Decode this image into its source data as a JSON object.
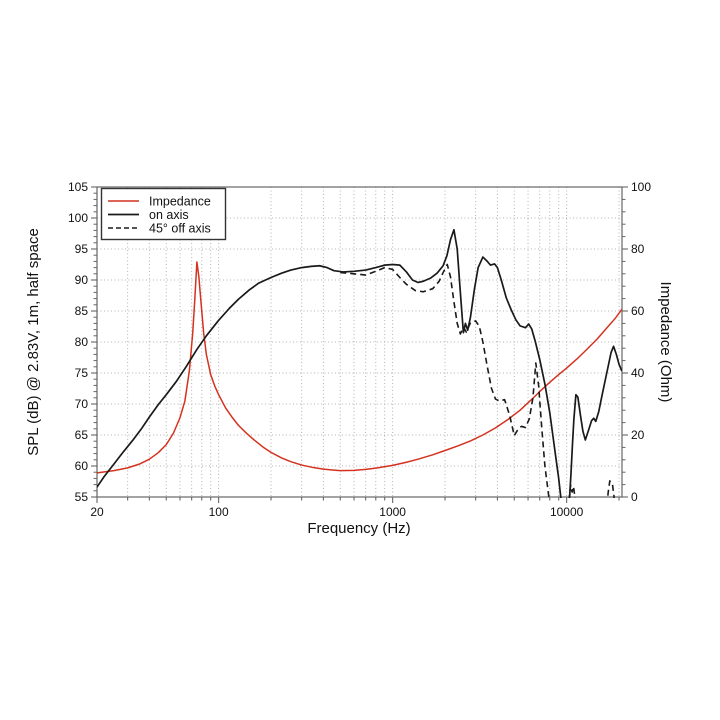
{
  "page": {
    "background": "#ffffff"
  },
  "chart_data": {
    "type": "line",
    "title": "",
    "x_axis": {
      "label": "Frequency (Hz)",
      "scale": "log",
      "min": 20,
      "max": 20800,
      "major_ticks": [
        20,
        100,
        1000,
        10000
      ],
      "tick_labels": [
        "20",
        "100",
        "1000",
        "10000"
      ]
    },
    "y_left_axis": {
      "label": "SPL (dB) @ 2.83V, 1m, half space",
      "min": 55,
      "max": 105,
      "major_step": 5,
      "minor_step": 1,
      "major_ticks": [
        55,
        60,
        65,
        70,
        75,
        80,
        85,
        90,
        95,
        100,
        105
      ],
      "tick_labels": [
        "55",
        "60",
        "65",
        "70",
        "75",
        "80",
        "85",
        "90",
        "95",
        "100",
        "105"
      ]
    },
    "y_right_axis": {
      "label": "Impedance (Ohm)",
      "min": 0,
      "max": 100,
      "major_step": 20,
      "minor_step": 4,
      "major_ticks": [
        0,
        20,
        40,
        60,
        80,
        100
      ],
      "tick_labels": [
        "0",
        "20",
        "40",
        "60",
        "80",
        "100"
      ]
    },
    "grid": {
      "show": true,
      "color": "#b3b3b3",
      "style": "dotted"
    },
    "frame_color": "#666666",
    "legend": {
      "position": "top-left",
      "entries": [
        {
          "label": "Impedance",
          "color": "#d4321f",
          "dash": "solid"
        },
        {
          "label": "on axis",
          "color": "#1a1a1a",
          "dash": "solid"
        },
        {
          "label": "45° off axis",
          "color": "#1a1a1a",
          "dash": "dashed"
        }
      ]
    },
    "series": [
      {
        "name": "Impedance",
        "axis": "right",
        "unit": "Ohm",
        "color": "#d4321f",
        "style": "solid",
        "points": [
          [
            20,
            7.8
          ],
          [
            25,
            8.5
          ],
          [
            30,
            9.4
          ],
          [
            35,
            10.6
          ],
          [
            40,
            12.2
          ],
          [
            45,
            14.3
          ],
          [
            50,
            16.9
          ],
          [
            55,
            20.6
          ],
          [
            60,
            25.6
          ],
          [
            64,
            31.0
          ],
          [
            68,
            41.0
          ],
          [
            71,
            53.0
          ],
          [
            73,
            64.0
          ],
          [
            75,
            75.8
          ],
          [
            77,
            71.0
          ],
          [
            79,
            63.5
          ],
          [
            82,
            53.0
          ],
          [
            85,
            46.0
          ],
          [
            90,
            39.5
          ],
          [
            95,
            35.8
          ],
          [
            100,
            33.0
          ],
          [
            110,
            28.6
          ],
          [
            120,
            25.6
          ],
          [
            130,
            23.1
          ],
          [
            145,
            20.5
          ],
          [
            160,
            18.4
          ],
          [
            180,
            16.1
          ],
          [
            200,
            14.4
          ],
          [
            230,
            12.6
          ],
          [
            260,
            11.4
          ],
          [
            300,
            10.3
          ],
          [
            350,
            9.5
          ],
          [
            400,
            9.0
          ],
          [
            450,
            8.7
          ],
          [
            500,
            8.5
          ],
          [
            600,
            8.6
          ],
          [
            700,
            8.9
          ],
          [
            800,
            9.3
          ],
          [
            900,
            9.8
          ],
          [
            1000,
            10.2
          ],
          [
            1200,
            11.2
          ],
          [
            1400,
            12.2
          ],
          [
            1700,
            13.6
          ],
          [
            2000,
            15.0
          ],
          [
            2400,
            16.6
          ],
          [
            2800,
            18.1
          ],
          [
            3300,
            20.0
          ],
          [
            3900,
            22.3
          ],
          [
            4600,
            25.0
          ],
          [
            5400,
            28.0
          ],
          [
            6300,
            31.5
          ],
          [
            7000,
            34.0
          ],
          [
            8000,
            37.0
          ],
          [
            9000,
            39.5
          ],
          [
            10000,
            41.6
          ],
          [
            11500,
            44.6
          ],
          [
            13000,
            47.5
          ],
          [
            15000,
            51.0
          ],
          [
            17000,
            54.5
          ],
          [
            19000,
            57.6
          ],
          [
            20800,
            60.6
          ]
        ]
      },
      {
        "name": "on axis",
        "axis": "left",
        "unit": "dB",
        "color": "#1a1a1a",
        "style": "solid",
        "points": [
          [
            20,
            56.6
          ],
          [
            22,
            58.3
          ],
          [
            25,
            60.3
          ],
          [
            28,
            62.1
          ],
          [
            32,
            64.1
          ],
          [
            36,
            66.0
          ],
          [
            40,
            67.9
          ],
          [
            45,
            69.9
          ],
          [
            50,
            71.5
          ],
          [
            57,
            73.6
          ],
          [
            65,
            76.0
          ],
          [
            75,
            78.8
          ],
          [
            85,
            81.0
          ],
          [
            100,
            83.5
          ],
          [
            115,
            85.4
          ],
          [
            130,
            86.9
          ],
          [
            150,
            88.4
          ],
          [
            170,
            89.5
          ],
          [
            200,
            90.4
          ],
          [
            230,
            91.1
          ],
          [
            260,
            91.6
          ],
          [
            300,
            92.0
          ],
          [
            340,
            92.2
          ],
          [
            380,
            92.3
          ],
          [
            420,
            92.0
          ],
          [
            460,
            91.5
          ],
          [
            520,
            91.3
          ],
          [
            600,
            91.4
          ],
          [
            700,
            91.6
          ],
          [
            800,
            92.0
          ],
          [
            900,
            92.4
          ],
          [
            1000,
            92.5
          ],
          [
            1100,
            92.4
          ],
          [
            1200,
            91.3
          ],
          [
            1300,
            90.0
          ],
          [
            1400,
            89.6
          ],
          [
            1500,
            89.8
          ],
          [
            1650,
            90.3
          ],
          [
            1800,
            91.1
          ],
          [
            1950,
            92.3
          ],
          [
            2050,
            93.9
          ],
          [
            2150,
            96.5
          ],
          [
            2250,
            98.1
          ],
          [
            2350,
            95.0
          ],
          [
            2450,
            88.0
          ],
          [
            2550,
            81.5
          ],
          [
            2620,
            83.0
          ],
          [
            2700,
            81.9
          ],
          [
            2800,
            84.0
          ],
          [
            2950,
            88.5
          ],
          [
            3100,
            92.0
          ],
          [
            3300,
            93.7
          ],
          [
            3500,
            93.0
          ],
          [
            3650,
            92.4
          ],
          [
            3850,
            92.6
          ],
          [
            4000,
            92.0
          ],
          [
            4200,
            90.1
          ],
          [
            4500,
            87.1
          ],
          [
            4800,
            85.2
          ],
          [
            5100,
            83.6
          ],
          [
            5400,
            82.6
          ],
          [
            5800,
            82.3
          ],
          [
            6050,
            82.9
          ],
          [
            6300,
            82.1
          ],
          [
            6600,
            80.1
          ],
          [
            7000,
            77.2
          ],
          [
            7500,
            73.2
          ],
          [
            8000,
            68.6
          ],
          [
            8500,
            63.1
          ],
          [
            9000,
            58.0
          ],
          [
            9250,
            55.0
          ],
          [
            9500,
            51.5
          ],
          [
            9800,
            50.0
          ],
          [
            10100,
            51.5
          ],
          [
            10400,
            55.0
          ],
          [
            10600,
            59.0
          ],
          [
            10800,
            63.5
          ],
          [
            11000,
            67.5
          ],
          [
            11300,
            71.5
          ],
          [
            11600,
            71.1
          ],
          [
            12000,
            68.2
          ],
          [
            12400,
            65.6
          ],
          [
            12800,
            64.2
          ],
          [
            13300,
            65.6
          ],
          [
            13900,
            67.3
          ],
          [
            14300,
            67.7
          ],
          [
            14700,
            67.2
          ],
          [
            15300,
            68.8
          ],
          [
            16000,
            71.5
          ],
          [
            17000,
            75.0
          ],
          [
            18000,
            78.3
          ],
          [
            18600,
            79.3
          ],
          [
            19300,
            78.0
          ],
          [
            20000,
            76.4
          ],
          [
            20700,
            75.4
          ]
        ]
      },
      {
        "name": "45° off axis",
        "axis": "left",
        "unit": "dB",
        "color": "#1a1a1a",
        "style": "dashed",
        "points": [
          [
            500,
            91.2
          ],
          [
            600,
            91.0
          ],
          [
            700,
            90.8
          ],
          [
            800,
            91.4
          ],
          [
            900,
            92.0
          ],
          [
            1000,
            91.7
          ],
          [
            1100,
            90.4
          ],
          [
            1200,
            89.3
          ],
          [
            1350,
            88.3
          ],
          [
            1500,
            88.1
          ],
          [
            1700,
            88.6
          ],
          [
            1850,
            89.8
          ],
          [
            1950,
            91.2
          ],
          [
            2060,
            92.5
          ],
          [
            2150,
            90.5
          ],
          [
            2250,
            86.5
          ],
          [
            2350,
            83.0
          ],
          [
            2450,
            81.3
          ],
          [
            2550,
            82.4
          ],
          [
            2650,
            81.6
          ],
          [
            2800,
            83.1
          ],
          [
            3000,
            83.4
          ],
          [
            3150,
            82.5
          ],
          [
            3300,
            80.0
          ],
          [
            3500,
            76.0
          ],
          [
            3700,
            72.5
          ],
          [
            3900,
            70.8
          ],
          [
            4100,
            70.5
          ],
          [
            4400,
            70.7
          ],
          [
            4700,
            68.2
          ],
          [
            5000,
            64.9
          ],
          [
            5250,
            65.9
          ],
          [
            5500,
            66.4
          ],
          [
            5800,
            66.2
          ],
          [
            6100,
            67.6
          ],
          [
            6400,
            71.0
          ],
          [
            6650,
            76.6
          ],
          [
            6900,
            73.0
          ],
          [
            7200,
            66.0
          ],
          [
            7500,
            60.0
          ],
          [
            7900,
            55.0
          ],
          [
            8100,
            51.0
          ],
          [
            8400,
            49.0
          ],
          [
            10000,
            49.0
          ],
          [
            10250,
            53.0
          ],
          [
            10400,
            55.6
          ],
          [
            10550,
            56.9
          ],
          [
            10750,
            55.8
          ],
          [
            10950,
            56.7
          ],
          [
            11150,
            55.0
          ],
          [
            11350,
            51.0
          ],
          [
            11600,
            49.0
          ],
          [
            16600,
            49.0
          ],
          [
            16900,
            52.0
          ],
          [
            17300,
            55.6
          ],
          [
            17700,
            57.6
          ],
          [
            18300,
            57.2
          ],
          [
            18700,
            55.2
          ],
          [
            19000,
            52.0
          ],
          [
            19200,
            49.0
          ]
        ]
      }
    ],
    "layout_hints": {
      "legend_position": "top-left",
      "x_log_minor_gridlines": true,
      "horizontal_gridlines_every": 5
    }
  }
}
